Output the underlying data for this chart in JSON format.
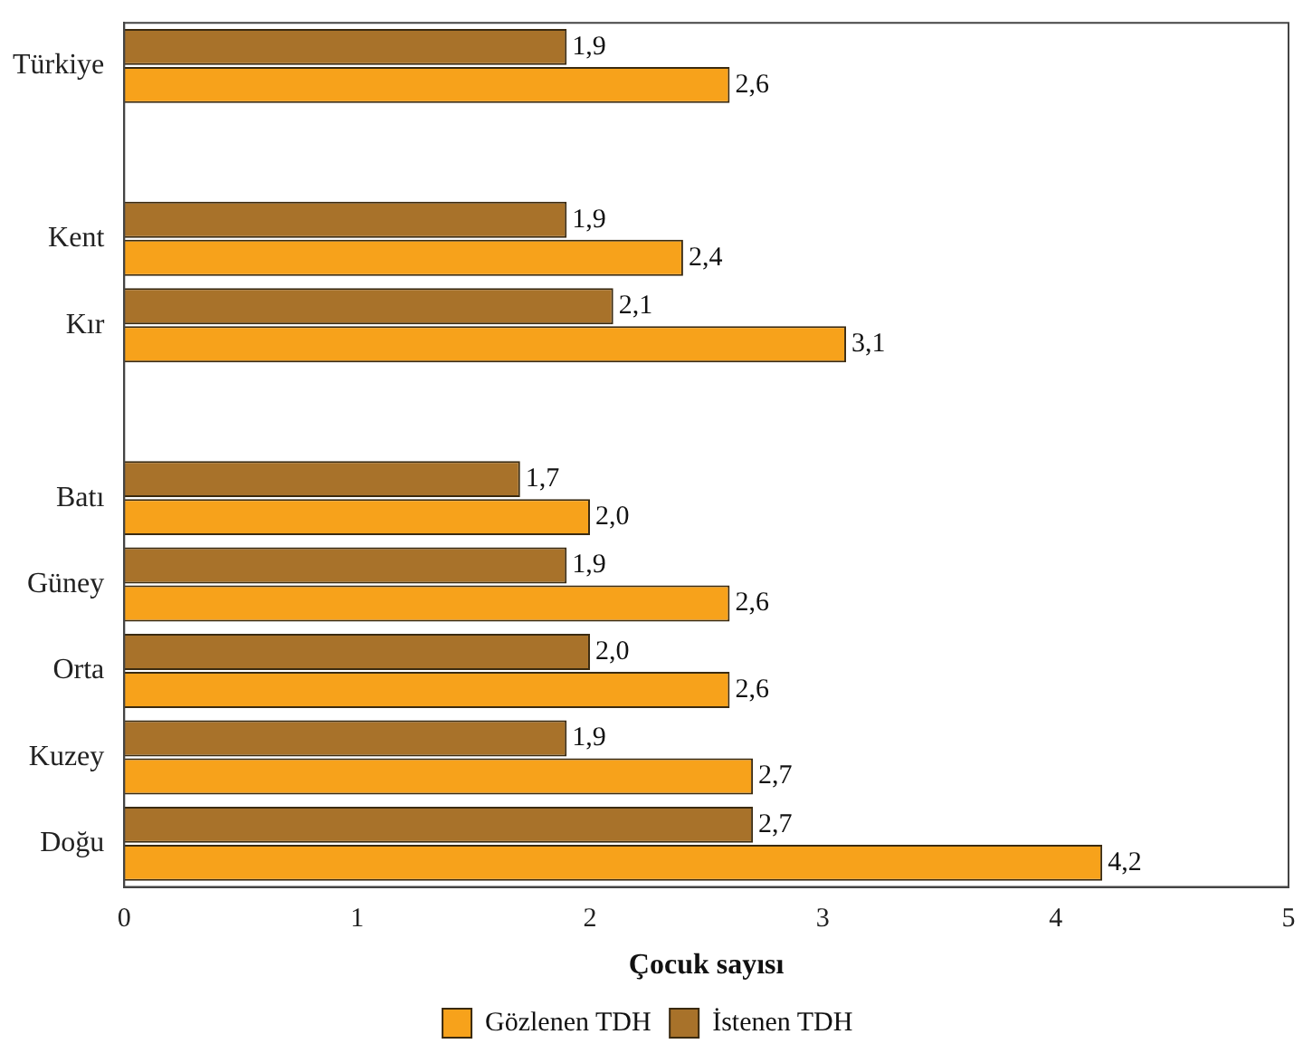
{
  "chart_data": {
    "type": "bar",
    "orientation": "horizontal",
    "xlabel": "Çocuk sayısı",
    "categories": [
      "Türkiye",
      null,
      "Kent",
      "Kır",
      null,
      "Batı",
      "Güney",
      "Orta",
      "Kuzey",
      "Doğu"
    ],
    "series": [
      {
        "name": "İstenen TDH",
        "color": "#a8722a",
        "values": [
          1.9,
          null,
          1.9,
          2.1,
          null,
          1.7,
          1.9,
          2.0,
          1.9,
          2.7
        ],
        "value_labels": [
          "1,9",
          null,
          "1,9",
          "2,1",
          null,
          "1,7",
          "1,9",
          "2,0",
          "1,9",
          "2,7"
        ]
      },
      {
        "name": "Gözlenen TDH",
        "color": "#f7a21b",
        "values": [
          2.6,
          null,
          2.4,
          3.1,
          null,
          2.0,
          2.6,
          2.6,
          2.7,
          4.2
        ],
        "value_labels": [
          "2,6",
          null,
          "2,4",
          "3,1",
          null,
          "2,0",
          "2,6",
          "2,6",
          "2,7",
          "4,2"
        ]
      }
    ],
    "xlim": [
      0,
      5
    ],
    "xticks": [
      0,
      1,
      2,
      3,
      4,
      5
    ],
    "grid": false,
    "legend": "bottom"
  }
}
